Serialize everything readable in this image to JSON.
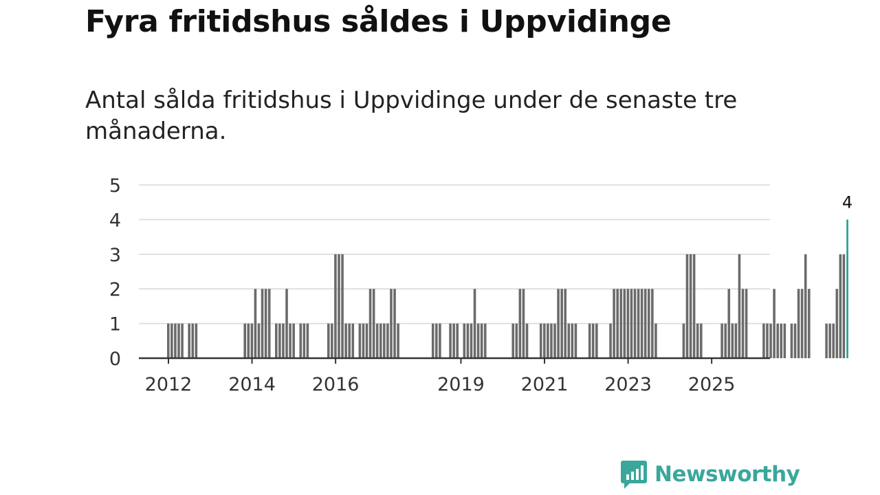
{
  "header": {
    "title": "Fyra fritidshus såldes i Uppvidinge",
    "subtitle": "Antal sålda fritidshus i Uppvidinge under de senaste tre månaderna."
  },
  "brand": {
    "name": "Newsworthy",
    "color": "#3aa79c"
  },
  "chart_data": {
    "type": "bar",
    "title": "Fyra fritidshus såldes i Uppvidinge",
    "subtitle": "Antal sålda fritidshus i Uppvidinge under de senaste tre månaderna.",
    "xlabel": "",
    "ylabel": "",
    "ylim": [
      0,
      5
    ],
    "yticks": [
      "0",
      "1",
      "2",
      "3",
      "4",
      "5"
    ],
    "grid": true,
    "bar_color": "#6b6b6b",
    "highlight_color": "#1a9e96",
    "x_start": 2012.0,
    "x_step": 0.0833,
    "x_tick_labels": [
      {
        "year": 2012,
        "label": "2012"
      },
      {
        "year": 2014,
        "label": "2014"
      },
      {
        "year": 2016,
        "label": "2016"
      },
      {
        "year": 2019,
        "label": "2019"
      },
      {
        "year": 2021,
        "label": "2021"
      },
      {
        "year": 2023,
        "label": "2023"
      },
      {
        "year": 2025,
        "label": "2025"
      }
    ],
    "values": [
      1,
      1,
      1,
      1,
      1,
      0,
      1,
      1,
      1,
      0,
      0,
      0,
      0,
      0,
      0,
      0,
      0,
      0,
      0,
      0,
      0,
      0,
      1,
      1,
      1,
      2,
      1,
      2,
      2,
      2,
      0,
      1,
      1,
      1,
      2,
      1,
      1,
      0,
      1,
      1,
      1,
      0,
      0,
      0,
      0,
      0,
      1,
      1,
      3,
      3,
      3,
      1,
      1,
      1,
      0,
      1,
      1,
      1,
      2,
      2,
      1,
      1,
      1,
      1,
      2,
      2,
      1,
      0,
      0,
      0,
      0,
      0,
      0,
      0,
      0,
      0,
      1,
      1,
      1,
      0,
      0,
      1,
      1,
      1,
      0,
      1,
      1,
      1,
      2,
      1,
      1,
      1,
      0,
      0,
      0,
      0,
      0,
      0,
      0,
      1,
      1,
      2,
      2,
      1,
      0,
      0,
      0,
      1,
      1,
      1,
      1,
      1,
      2,
      2,
      2,
      1,
      1,
      1,
      0,
      0,
      0,
      1,
      1,
      1,
      0,
      0,
      0,
      1,
      2,
      2,
      2,
      2,
      2,
      2,
      2,
      2,
      2,
      2,
      2,
      2,
      1,
      0,
      0,
      0,
      0,
      0,
      0,
      0,
      1,
      3,
      3,
      3,
      1,
      1,
      0,
      0,
      0,
      0,
      0,
      1,
      1,
      2,
      1,
      1,
      3,
      2,
      2,
      0,
      0,
      0,
      0,
      1,
      1,
      1,
      2,
      1,
      1,
      1,
      0,
      1,
      1,
      2,
      2,
      3,
      2,
      0,
      0,
      0,
      0,
      1,
      1,
      1,
      2,
      3,
      3,
      4
    ],
    "highlight_index": 195,
    "highlight_label": "4"
  }
}
